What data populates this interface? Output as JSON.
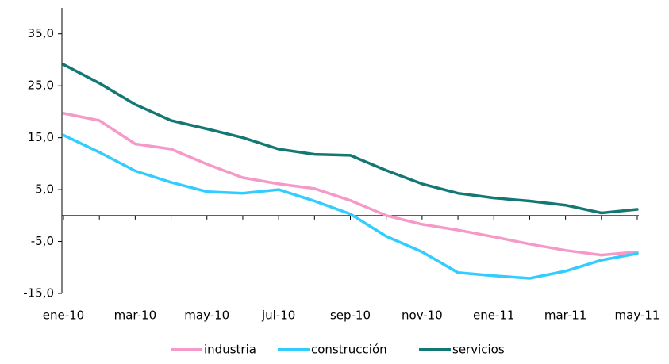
{
  "chart_data": {
    "type": "line",
    "categories": [
      "ene-10",
      null,
      "mar-10",
      null,
      "may-10",
      null,
      "jul-10",
      null,
      "sep-10",
      null,
      "nov-10",
      null,
      "ene-11",
      null,
      "mar-11",
      null,
      "may-11"
    ],
    "series": [
      {
        "name": "industria",
        "color": "#f59ac8",
        "values": [
          19.7,
          18.3,
          13.8,
          12.8,
          9.9,
          7.3,
          6.1,
          5.2,
          2.9,
          0.0,
          -1.7,
          -2.8,
          -4.1,
          -5.5,
          -6.7,
          -7.6,
          -7.0
        ]
      },
      {
        "name": "construcción",
        "color": "#33ccff",
        "values": [
          15.5,
          12.2,
          8.6,
          6.4,
          4.6,
          4.3,
          5.0,
          2.8,
          0.3,
          -4.0,
          -7.0,
          -11.0,
          -11.6,
          -12.1,
          -10.7,
          -8.6,
          -7.3
        ]
      },
      {
        "name": "servicios",
        "color": "#137873",
        "values": [
          29.1,
          25.5,
          21.4,
          18.3,
          16.7,
          15.0,
          12.8,
          11.8,
          11.6,
          8.7,
          6.1,
          4.3,
          3.4,
          2.8,
          2.0,
          0.5,
          1.2
        ]
      }
    ],
    "ylim": [
      -15,
      40
    ],
    "yticks": [
      {
        "value": -15,
        "label": "-15,0"
      },
      {
        "value": -5,
        "label": "-5,0"
      },
      {
        "value": 5,
        "label": "5,0"
      },
      {
        "value": 15,
        "label": "15,0"
      },
      {
        "value": 25,
        "label": "25,0"
      },
      {
        "value": 35,
        "label": "35,0"
      }
    ],
    "legend": "bottom"
  }
}
